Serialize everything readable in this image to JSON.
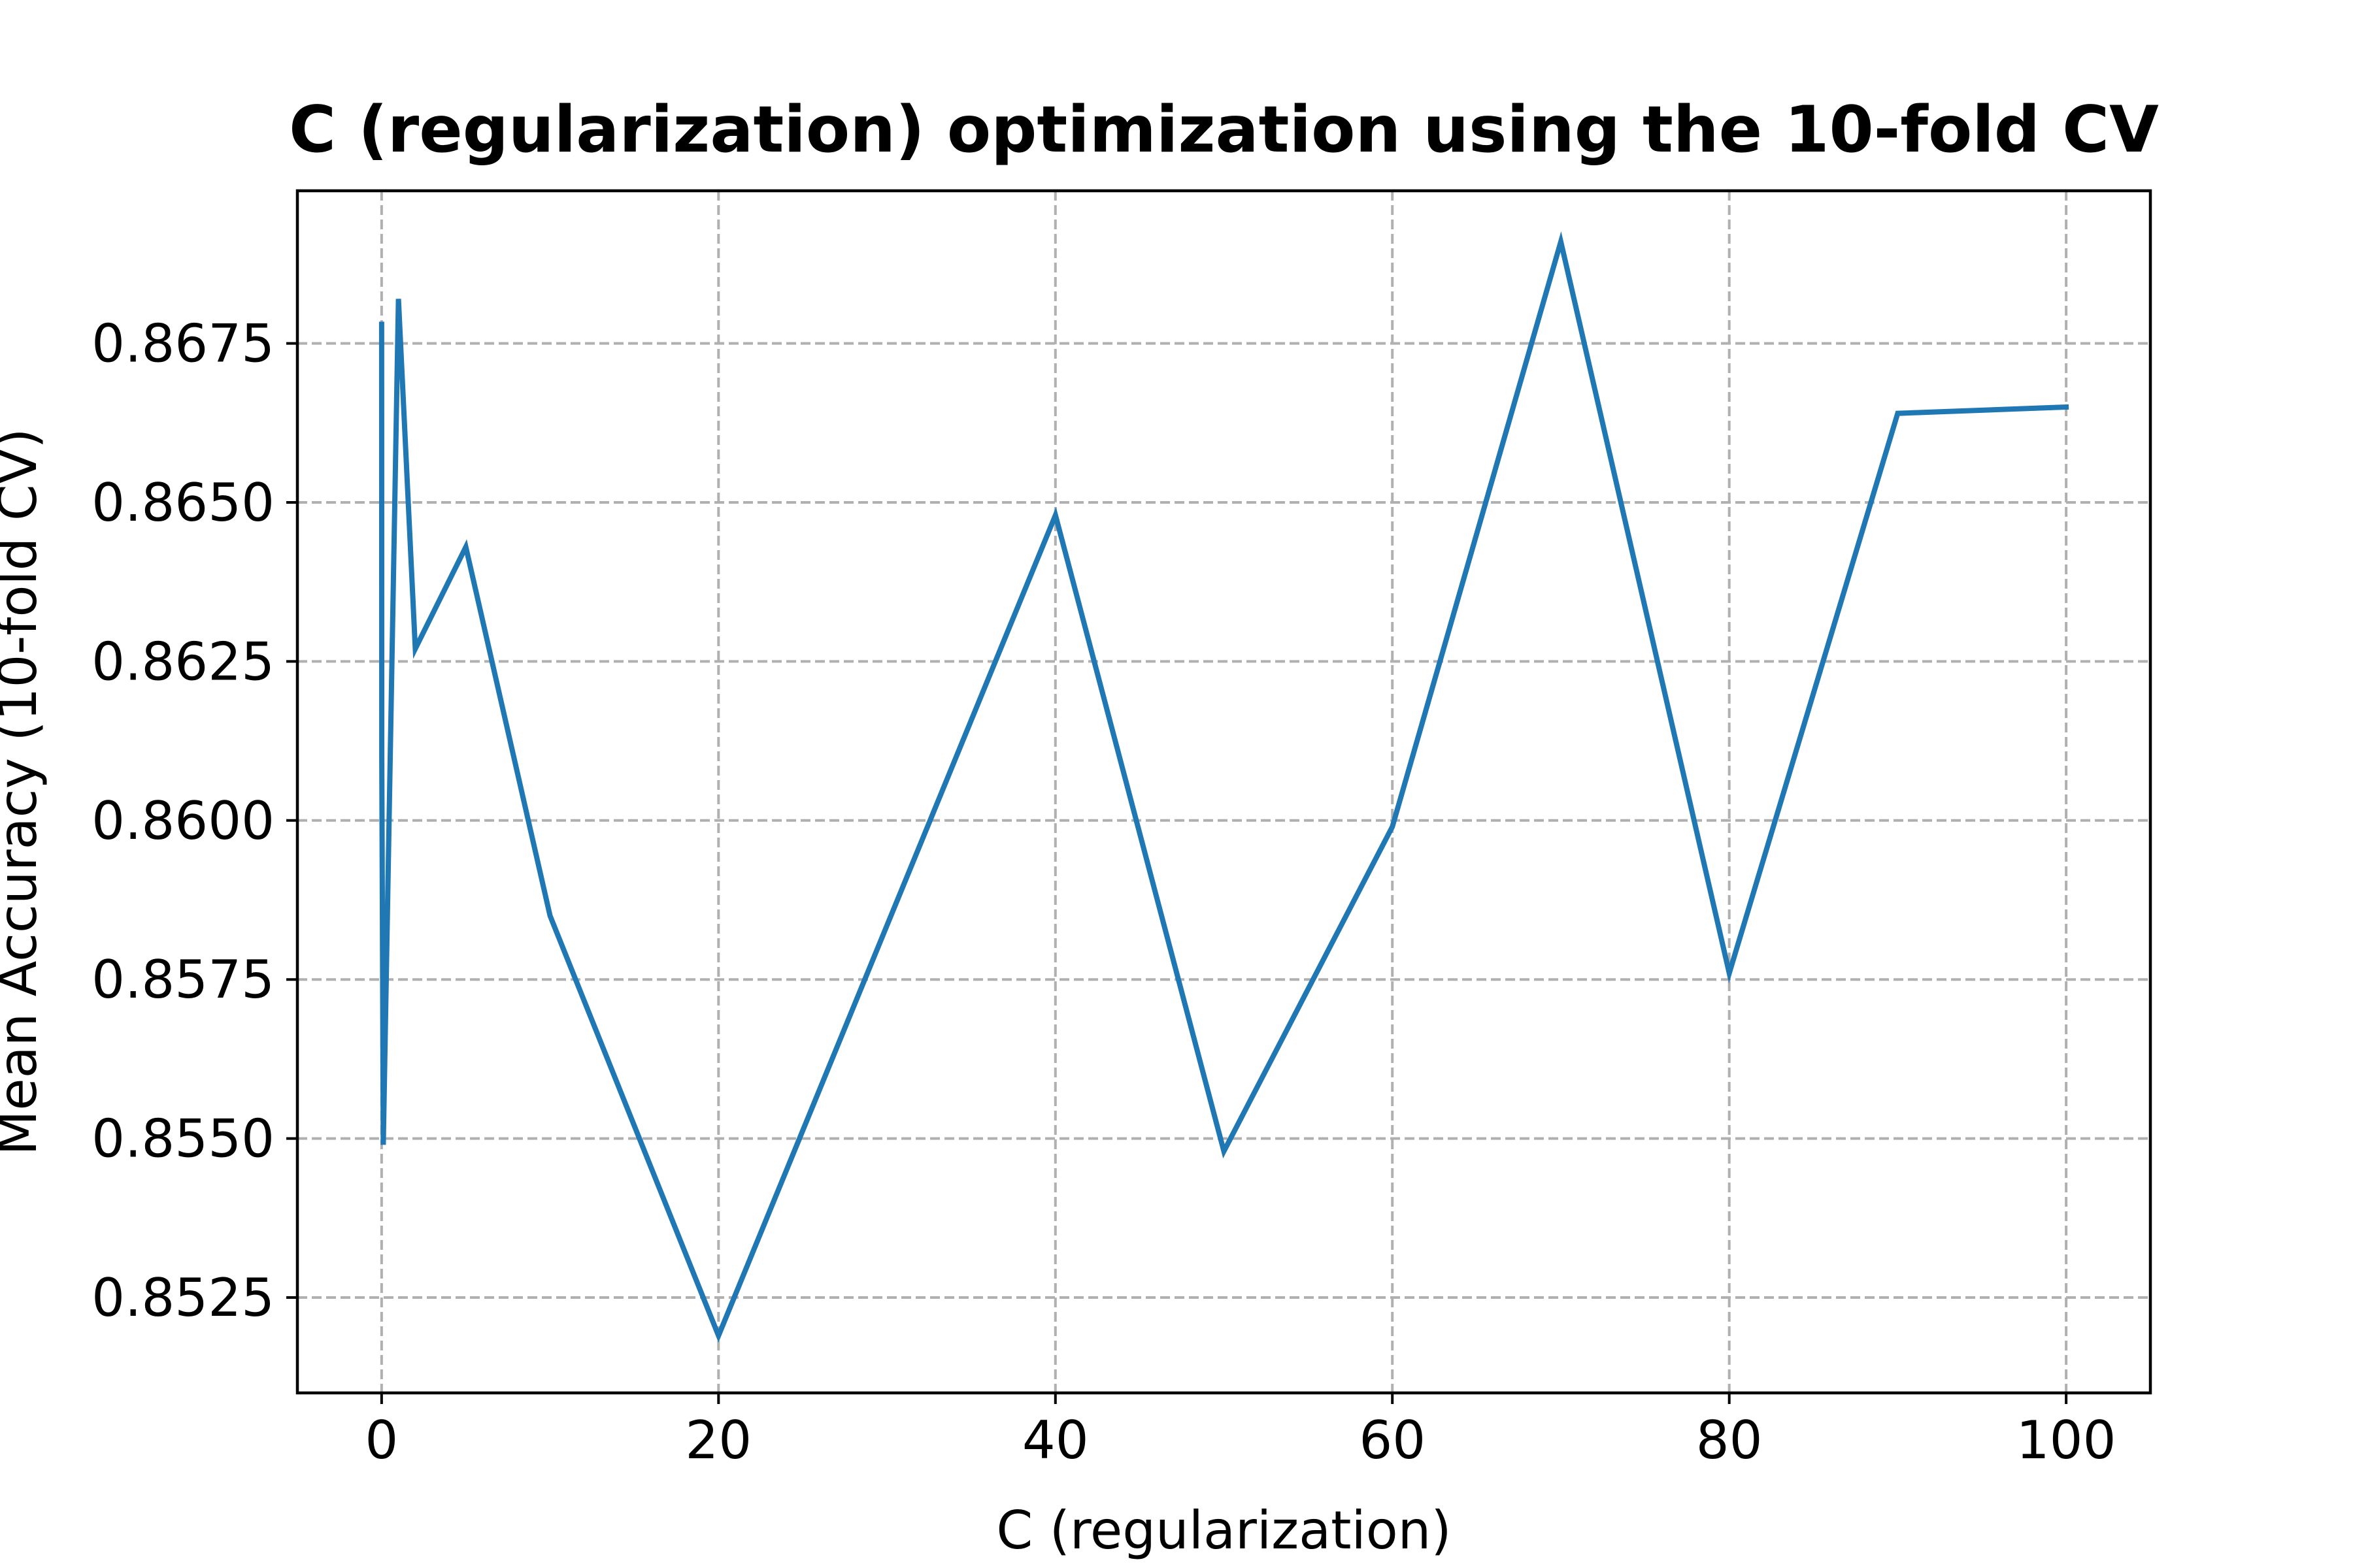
{
  "chart_data": {
    "type": "line",
    "title": "C (regularization) optimization using the 10-fold CV",
    "xlabel": "C (regularization)",
    "ylabel": "Mean Accuracy (10-fold CV)",
    "xlim": [
      -5,
      105
    ],
    "ylim": [
      0.851,
      0.8699
    ],
    "grid": true,
    "legend": "none",
    "x_ticks": [
      "0",
      "20",
      "40",
      "60",
      "80",
      "100"
    ],
    "y_ticks": [
      "0.8525",
      "0.8550",
      "0.8575",
      "0.8600",
      "0.8625",
      "0.8650",
      "0.8675"
    ],
    "series": [
      {
        "color": "#1f77b4",
        "x": [
          0.001,
          0.01,
          0.1,
          1,
          2,
          5,
          10,
          20,
          40,
          50,
          60,
          70,
          80,
          90,
          100
        ],
        "y": [
          0.8678,
          0.861,
          0.8549,
          0.8682,
          0.8627,
          0.8643,
          0.8585,
          0.8519,
          0.8648,
          0.8548,
          0.8599,
          0.8691,
          0.8576,
          0.8664,
          0.8665
        ]
      }
    ]
  }
}
